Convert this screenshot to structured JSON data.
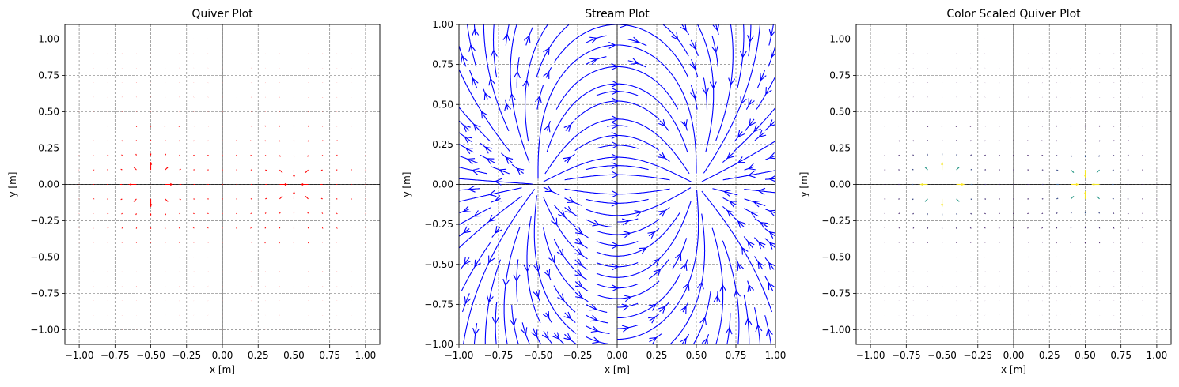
{
  "chart_data": [
    {
      "type": "quiver",
      "title": "Quiver Plot",
      "xlabel": "x [m]",
      "ylabel": "y [m]",
      "xlim": [
        -1.1,
        1.1
      ],
      "ylim": [
        -1.1,
        1.1
      ],
      "xticks": [
        -1.0,
        -0.75,
        -0.5,
        -0.25,
        0.0,
        0.25,
        0.5,
        0.75,
        1.0
      ],
      "yticks": [
        -1.0,
        -0.75,
        -0.5,
        -0.25,
        0.0,
        0.25,
        0.5,
        0.75,
        1.0
      ],
      "xtick_labels": [
        "−1.00",
        "−0.75",
        "−0.50",
        "−0.25",
        "0.00",
        "0.25",
        "0.50",
        "0.75",
        "1.00"
      ],
      "ytick_labels": [
        "−1.00",
        "−0.75",
        "−0.50",
        "−0.25",
        "0.00",
        "0.25",
        "0.50",
        "0.75",
        "1.00"
      ],
      "grid": true,
      "color": "#ff0000",
      "field": {
        "source": {
          "x": -0.5,
          "y": 0.0
        },
        "sink": {
          "x": 0.5,
          "y": 0.0
        },
        "grid_step": 0.1,
        "grid_range": [
          -1.0,
          1.0
        ]
      }
    },
    {
      "type": "streamplot",
      "title": "Stream Plot",
      "xlabel": "x [m]",
      "ylabel": "y [m]",
      "xlim": [
        -1.0,
        1.0
      ],
      "ylim": [
        -1.0,
        1.0
      ],
      "xticks": [
        -1.0,
        -0.75,
        -0.5,
        -0.25,
        0.0,
        0.25,
        0.5,
        0.75,
        1.0
      ],
      "yticks": [
        -1.0,
        -0.75,
        -0.5,
        -0.25,
        0.0,
        0.25,
        0.5,
        0.75,
        1.0
      ],
      "xtick_labels": [
        "−1.00",
        "−0.75",
        "−0.50",
        "−0.25",
        "0.00",
        "0.25",
        "0.50",
        "0.75",
        "1.00"
      ],
      "ytick_labels": [
        "−1.00",
        "−0.75",
        "−0.50",
        "−0.25",
        "0.00",
        "0.25",
        "0.50",
        "0.75",
        "1.00"
      ],
      "grid": true,
      "color": "#0000ff",
      "field": {
        "source": {
          "x": -0.5,
          "y": 0.0
        },
        "sink": {
          "x": 0.5,
          "y": 0.0
        }
      }
    },
    {
      "type": "quiver",
      "title": "Color Scaled Quiver Plot",
      "xlabel": "x [m]",
      "ylabel": "y [m]",
      "xlim": [
        -1.1,
        1.1
      ],
      "ylim": [
        -1.1,
        1.1
      ],
      "xticks": [
        -1.0,
        -0.75,
        -0.5,
        -0.25,
        0.0,
        0.25,
        0.5,
        0.75,
        1.0
      ],
      "yticks": [
        -1.0,
        -0.75,
        -0.5,
        -0.25,
        0.0,
        0.25,
        0.5,
        0.75,
        1.0
      ],
      "xtick_labels": [
        "−1.00",
        "−0.75",
        "−0.50",
        "−0.25",
        "0.00",
        "0.25",
        "0.50",
        "0.75",
        "1.00"
      ],
      "ytick_labels": [
        "−1.00",
        "−0.75",
        "−0.50",
        "−0.25",
        "0.00",
        "0.25",
        "0.50",
        "0.75",
        "1.00"
      ],
      "grid": true,
      "colormap": "viridis",
      "colormap_stops": [
        "#440154",
        "#3b528b",
        "#21918c",
        "#5ec962",
        "#fde725"
      ],
      "field": {
        "source": {
          "x": -0.5,
          "y": 0.0
        },
        "sink": {
          "x": 0.5,
          "y": 0.0
        },
        "grid_step": 0.1,
        "grid_range": [
          -1.0,
          1.0
        ]
      }
    }
  ]
}
